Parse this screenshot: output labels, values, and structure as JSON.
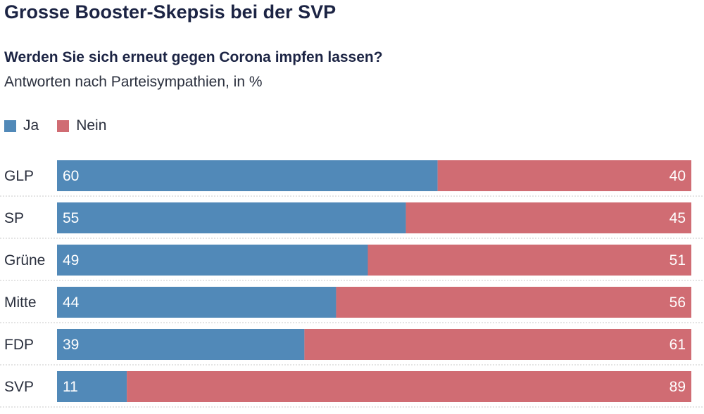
{
  "title": "Grosse Booster-Skepsis bei der SVP",
  "subtitle": "Werden Sie sich erneut gegen Corona impfen lassen?",
  "note": "Antworten nach Parteisympathien, in %",
  "colors": {
    "ja": "#5189b8",
    "nein": "#d06c73",
    "separator": "#c8c8c8"
  },
  "chart_data": {
    "type": "bar",
    "orientation": "horizontal",
    "stacked": true,
    "categories": [
      "GLP",
      "SP",
      "Grüne",
      "Mitte",
      "FDP",
      "SVP"
    ],
    "series": [
      {
        "name": "Ja",
        "values": [
          60,
          55,
          49,
          44,
          39,
          11
        ]
      },
      {
        "name": "Nein",
        "values": [
          40,
          45,
          51,
          56,
          61,
          89
        ]
      }
    ],
    "xlim": [
      0,
      100
    ],
    "legend": "top-left",
    "grid": false
  }
}
